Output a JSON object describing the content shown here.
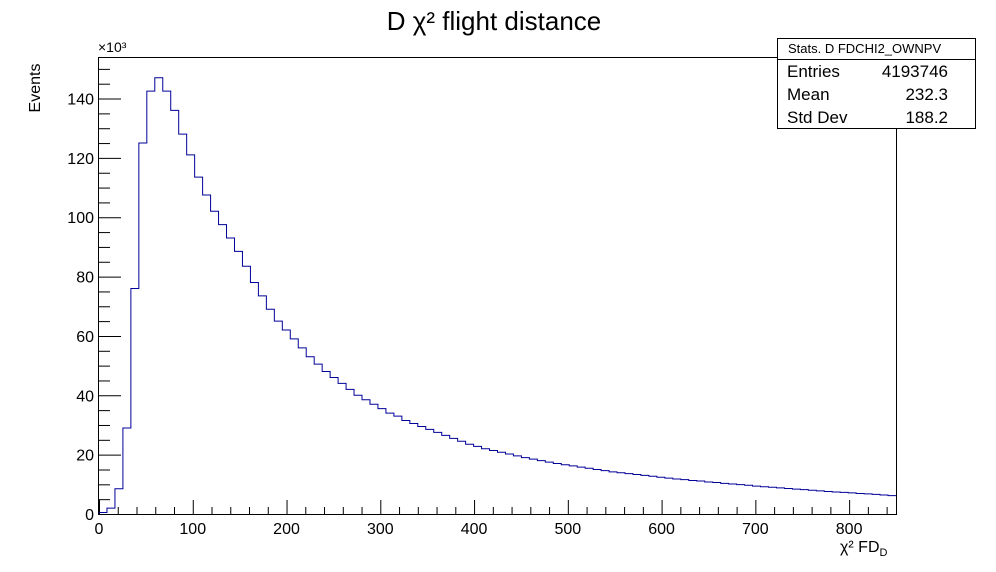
{
  "chart_data": {
    "type": "histogram",
    "title": "D χ² flight distance",
    "xlabel": "χ² FD_D",
    "ylabel": "Events",
    "y_exponent_label": "×10³",
    "xlim": [
      0,
      850
    ],
    "ylim": [
      0,
      154
    ],
    "x_ticks": [
      0,
      100,
      200,
      300,
      400,
      500,
      600,
      700,
      800
    ],
    "y_ticks": [
      0,
      20,
      40,
      60,
      80,
      100,
      120,
      140
    ],
    "line_color": "#000099",
    "bin_width": 8.5,
    "values": [
      0.5,
      2,
      8.5,
      29,
      76,
      125,
      142.5,
      147,
      142.5,
      136,
      128,
      121,
      113.5,
      107.5,
      102,
      97.5,
      93,
      88.5,
      83.5,
      78,
      73.5,
      69,
      65,
      62,
      59,
      56,
      53,
      50.5,
      48,
      46,
      44,
      42,
      40,
      38.5,
      37,
      35.5,
      34,
      33,
      31.5,
      30.5,
      29.5,
      28.5,
      27.5,
      26.5,
      25.5,
      24.5,
      23.5,
      22.8,
      22,
      21.4,
      20.8,
      20.2,
      19.6,
      19,
      18.5,
      18,
      17.5,
      17,
      16.6,
      16.2,
      15.8,
      15.4,
      15,
      14.6,
      14.2,
      13.9,
      13.6,
      13.3,
      13,
      12.7,
      12.4,
      12.1,
      11.8,
      11.6,
      11.3,
      11.1,
      10.8,
      10.6,
      10.3,
      10.1,
      9.9,
      9.7,
      9.4,
      9.2,
      9.0,
      8.8,
      8.6,
      8.4,
      8.2,
      8.0,
      7.8,
      7.6,
      7.4,
      7.3,
      7.1,
      6.9,
      6.8,
      6.6,
      6.4,
      6.2
    ]
  },
  "stats": {
    "title": "Stats. D FDCHI2_OWNPV",
    "entries_label": "Entries",
    "entries_value": "4193746",
    "mean_label": "Mean",
    "mean_value": "232.3",
    "stddev_label": "Std Dev",
    "stddev_value": "188.2"
  }
}
